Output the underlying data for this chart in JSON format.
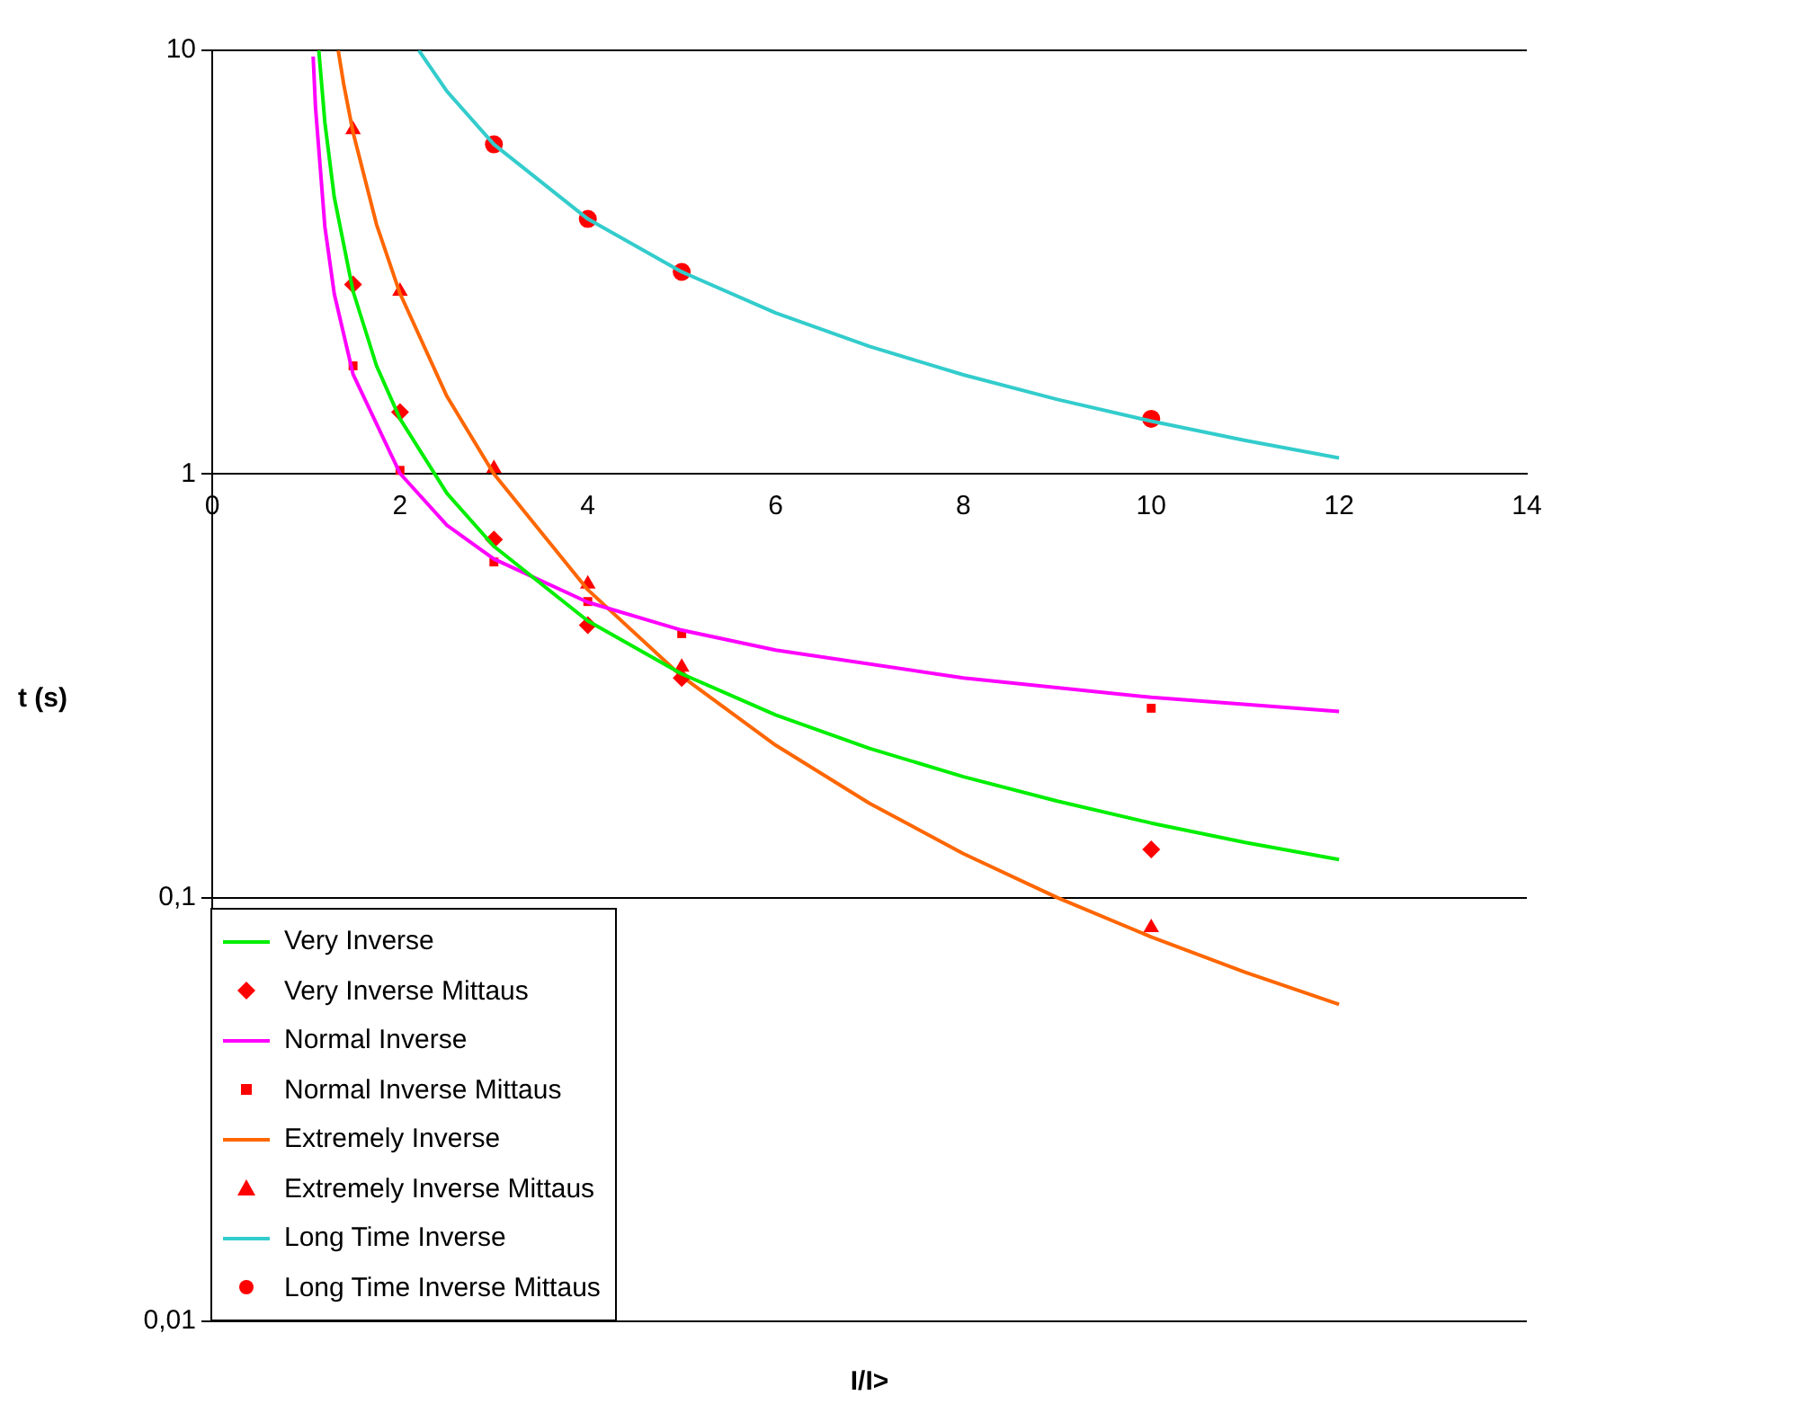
{
  "chart_data": {
    "type": "line",
    "xlabel": "I/I>",
    "ylabel": "t (s)",
    "log": "y",
    "grid": "y",
    "legend": "bottom left",
    "xlim": [
      0,
      14
    ],
    "xticks": [
      0,
      2,
      4,
      6,
      8,
      10,
      12,
      14
    ],
    "ylim": [
      0.01,
      10
    ],
    "yticks": [
      {
        "value": 0.01,
        "label": "0,01"
      },
      {
        "value": 0.1,
        "label": "0,1"
      },
      {
        "value": 1,
        "label": "1"
      },
      {
        "value": 10,
        "label": "10"
      }
    ],
    "series": [
      {
        "name": "Very Inverse",
        "marker": "none",
        "color": "#00ee00",
        "x": [
          1.135,
          1.2,
          1.3,
          1.5,
          1.75,
          2,
          2.5,
          3,
          4,
          5,
          6,
          7,
          8,
          9,
          10,
          11,
          12
        ],
        "values": [
          10,
          6.75,
          4.5,
          2.7,
          1.8,
          1.35,
          0.9,
          0.675,
          0.45,
          0.3375,
          0.27,
          0.225,
          0.193,
          0.169,
          0.15,
          0.135,
          0.123
        ]
      },
      {
        "name": "Very Inverse Mittaus",
        "type": "scatter",
        "marker": "diamond",
        "color": "#ff0000",
        "x": [
          1.5,
          2,
          3,
          4,
          5,
          10
        ],
        "values": [
          2.8,
          1.4,
          0.7,
          0.44,
          0.33,
          0.13
        ]
      },
      {
        "name": "Normal Inverse",
        "marker": "none",
        "color": "#ff00ff",
        "x": [
          1.075,
          1.1,
          1.2,
          1.3,
          1.5,
          2,
          2.5,
          3,
          4,
          5,
          6,
          8,
          10,
          12
        ],
        "values": [
          9.67,
          7.34,
          3.83,
          2.66,
          1.72,
          1.003,
          0.757,
          0.63,
          0.498,
          0.428,
          0.384,
          0.33,
          0.297,
          0.275
        ]
      },
      {
        "name": "Normal Inverse Mittaus",
        "type": "scatter",
        "marker": "square",
        "color": "#ff0000",
        "x": [
          1.5,
          2,
          3,
          4,
          5,
          10
        ],
        "values": [
          1.8,
          1.02,
          0.62,
          0.5,
          0.42,
          0.28
        ]
      },
      {
        "name": "Extremely Inverse",
        "marker": "none",
        "color": "#ff6600",
        "x": [
          1.342,
          1.4,
          1.5,
          1.75,
          2,
          2.5,
          3,
          4,
          5,
          6,
          7,
          8,
          9,
          10,
          11,
          12
        ],
        "values": [
          9.99,
          8.33,
          6.4,
          3.88,
          2.667,
          1.524,
          1,
          0.533,
          0.333,
          0.229,
          0.167,
          0.127,
          0.1,
          0.0808,
          0.0667,
          0.056
        ]
      },
      {
        "name": "Extremely Inverse Mittaus",
        "type": "scatter",
        "marker": "triangle",
        "color": "#ff0000",
        "x": [
          1.5,
          2,
          3,
          4,
          5,
          10
        ],
        "values": [
          6.5,
          2.7,
          1.03,
          0.55,
          0.35,
          0.085
        ]
      },
      {
        "name": "Long Time Inverse",
        "marker": "none",
        "color": "#33cccc",
        "x": [
          2.2,
          2.5,
          3,
          4,
          5,
          6,
          7,
          8,
          9,
          10,
          11,
          12
        ],
        "values": [
          10,
          8,
          6,
          4,
          3,
          2.4,
          2,
          1.714,
          1.5,
          1.333,
          1.2,
          1.091
        ]
      },
      {
        "name": "Long Time Inverse Mittaus",
        "type": "scatter",
        "marker": "circle",
        "color": "#ff0000",
        "x": [
          3,
          4,
          5,
          10
        ],
        "values": [
          6,
          4,
          3,
          1.35
        ]
      }
    ]
  }
}
